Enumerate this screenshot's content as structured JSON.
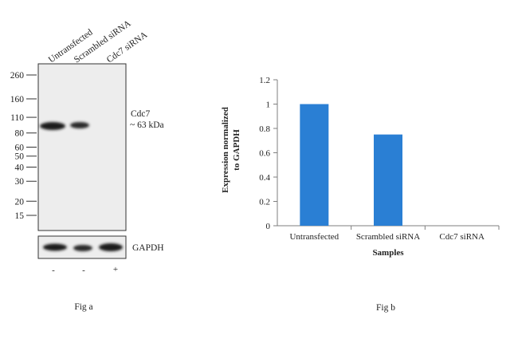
{
  "figure_a": {
    "caption": "Fig a",
    "lanes": [
      "Untransfected",
      "Scrambled  siRNA",
      "Cdc7 siRNA"
    ],
    "markers": [
      "260",
      "160",
      "110",
      "80",
      "60",
      "50",
      "40",
      "30",
      "20",
      "15"
    ],
    "marker_values_kda": [
      260,
      160,
      110,
      80,
      60,
      50,
      40,
      30,
      20,
      15
    ],
    "target_label_line1": "Cdc7",
    "target_label_line2": "~ 63 kDa",
    "loading_control_label": "GAPDH",
    "lane_signs": [
      "-",
      "-",
      "+"
    ],
    "band_intensity": {
      "cdc7": [
        1.0,
        0.75,
        0.0
      ],
      "gapdh": [
        1.0,
        0.85,
        1.0
      ]
    }
  },
  "chart_data": {
    "type": "bar",
    "caption": "Fig b",
    "categories": [
      "Untransfected",
      "Scrambled siRNA",
      "Cdc7 siRNA"
    ],
    "values": [
      1.0,
      0.75,
      0.0
    ],
    "xlabel": "Samples",
    "ylabel": "Expression normalized to GAPDH",
    "ylabel_line1": "Expression normalized",
    "ylabel_line2": "to GAPDH",
    "ylim": [
      0,
      1.2
    ],
    "yticks": [
      "0",
      "0.2",
      "0.4",
      "0.6",
      "0.8",
      "1",
      "1.2"
    ],
    "bar_color": "#2a7fd4",
    "grid": false,
    "legend": "none"
  }
}
